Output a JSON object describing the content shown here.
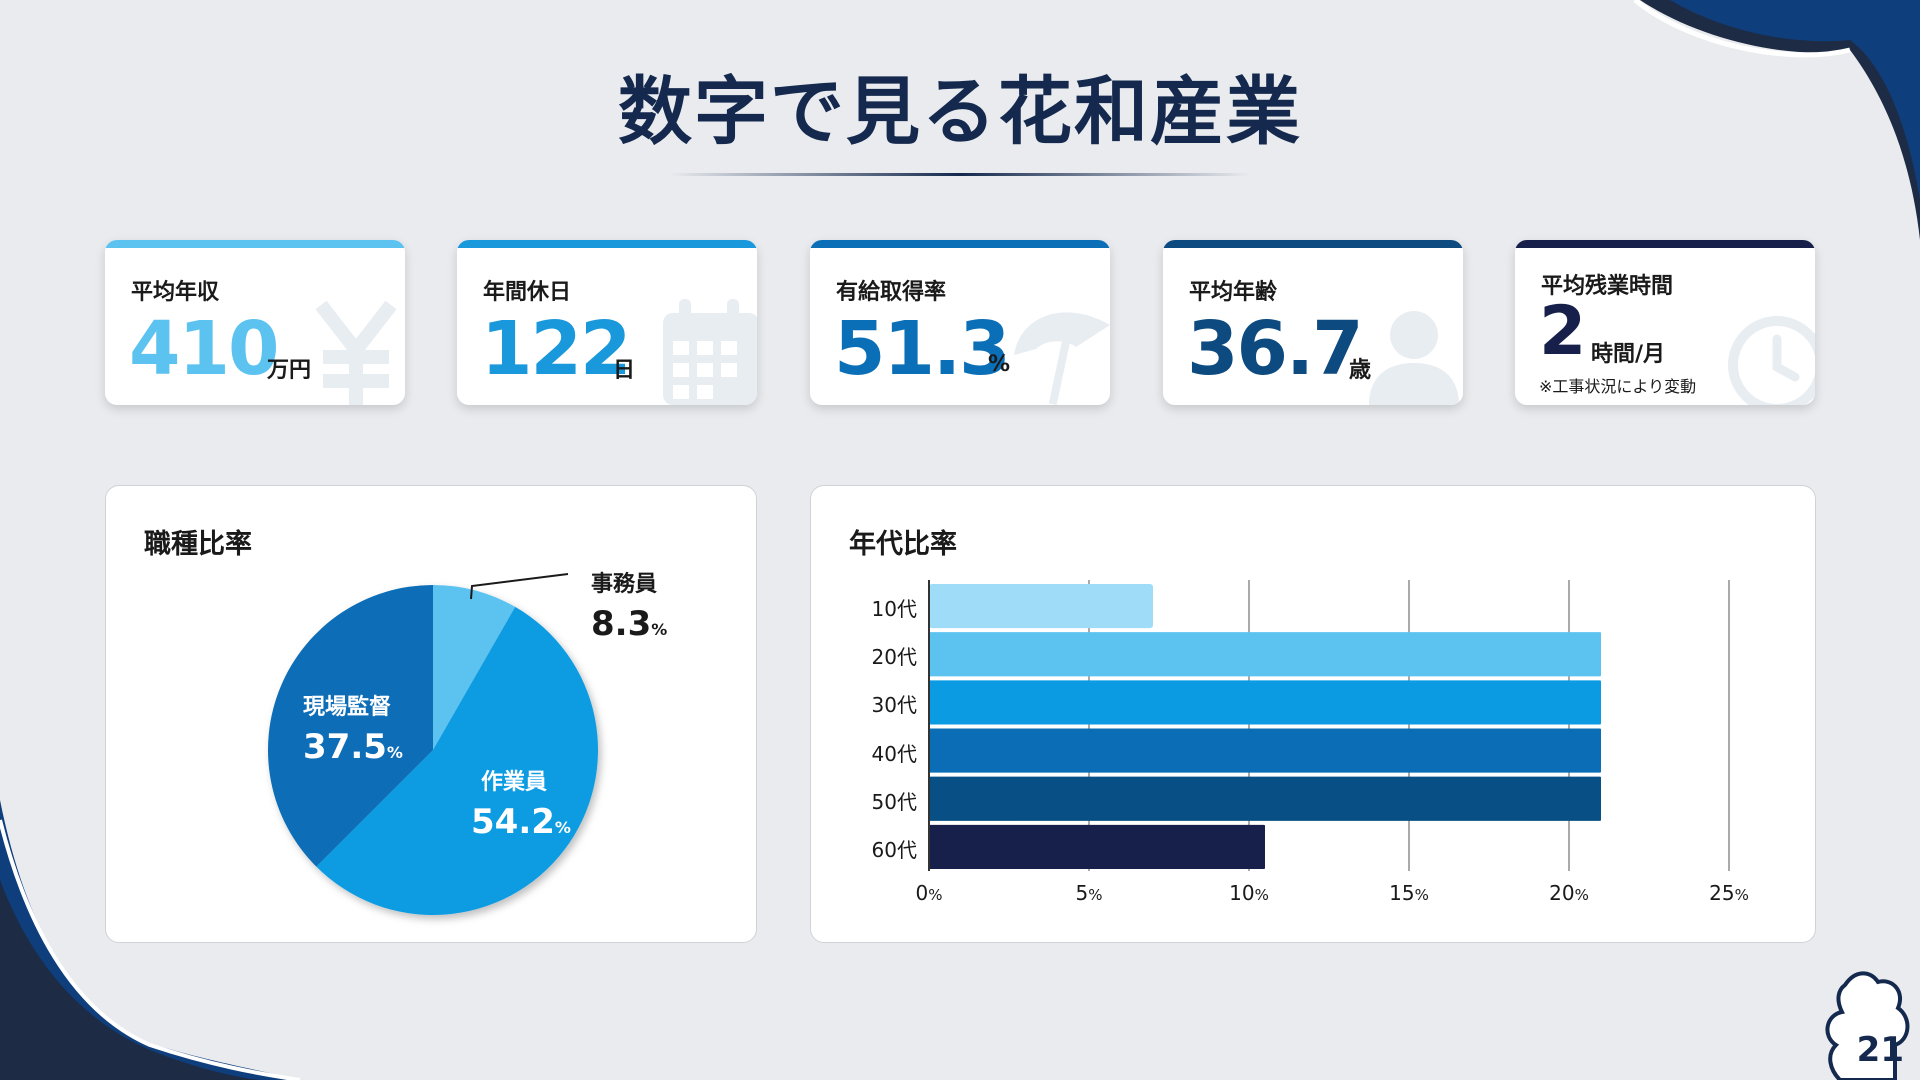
{
  "header": {
    "title": "数字で見る花和産業"
  },
  "stats": [
    {
      "label": "平均年収",
      "value": "410",
      "unit": "万円",
      "color": "#5cc3f0",
      "icon": "yen-icon"
    },
    {
      "label": "年間休日",
      "value": "122",
      "unit": "日",
      "color": "#1a98dc",
      "icon": "calendar-icon"
    },
    {
      "label": "有給取得率",
      "value": "51.3",
      "unit": "%",
      "color": "#0b6fb8",
      "icon": "umbrella-icon"
    },
    {
      "label": "平均年齢",
      "value": "36.7",
      "unit": "歳",
      "color": "#0d4a80",
      "icon": "person-icon"
    },
    {
      "label": "平均残業時間",
      "value": "2",
      "unit": "時間/月",
      "note": "※工事状況により変動",
      "color": "#16204a",
      "icon": "clock-icon"
    }
  ],
  "pie_panel": {
    "title": "職種比率"
  },
  "bar_panel": {
    "title": "年代比率"
  },
  "page_number": "21",
  "chart_data": [
    {
      "type": "pie",
      "title": "職種比率",
      "slices": [
        {
          "name": "事務員",
          "value": 8.3,
          "display": "8.3",
          "color": "#5cc3f0"
        },
        {
          "name": "作業員",
          "value": 54.2,
          "display": "54.2",
          "color": "#0a9be2"
        },
        {
          "name": "現場監督",
          "value": 37.5,
          "display": "37.5",
          "color": "#0a6db6"
        }
      ],
      "unit": "%"
    },
    {
      "type": "bar",
      "orientation": "horizontal",
      "title": "年代比率",
      "categories": [
        "10代",
        "20代",
        "30代",
        "40代",
        "50代",
        "60代"
      ],
      "values": [
        7,
        21,
        21,
        21,
        21,
        10.5
      ],
      "colors": [
        "#9fdcf7",
        "#5cc3f0",
        "#0a9be2",
        "#0a6db6",
        "#084f85",
        "#16204a"
      ],
      "xlim": [
        0,
        25
      ],
      "xticks": [
        "0",
        "5",
        "10",
        "15",
        "20",
        "25"
      ],
      "xtick_unit": "%",
      "grid": true
    }
  ]
}
